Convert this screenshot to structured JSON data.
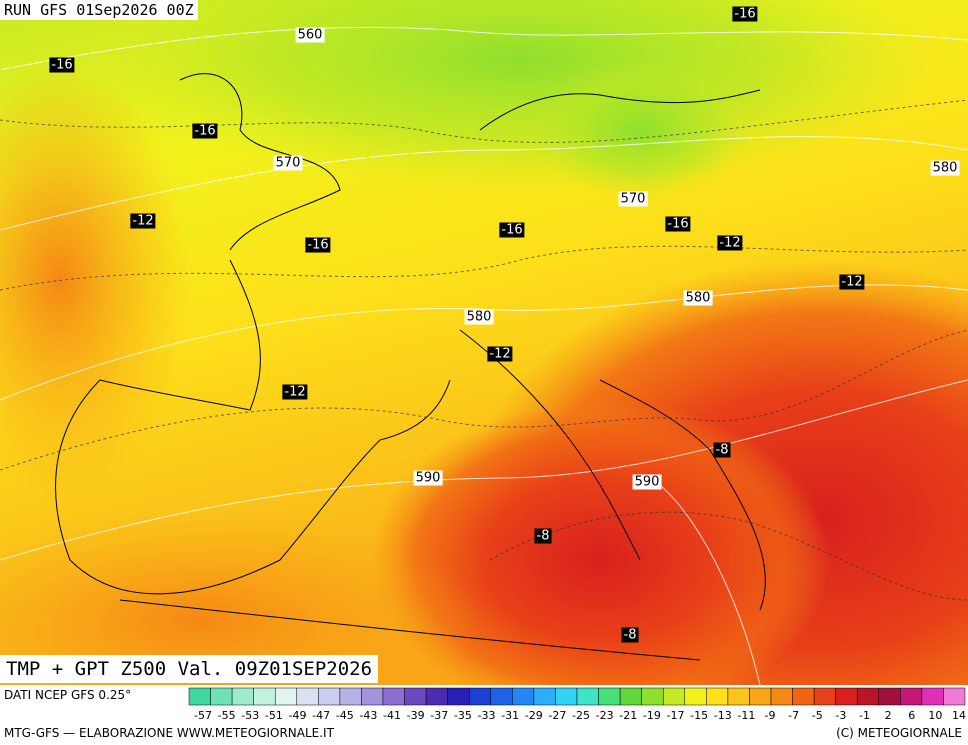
{
  "header": {
    "run": "RUN GFS 01Sep2026 00Z",
    "title": "TMP + GPT Z500 Val. 09Z01SEP2026"
  },
  "map_labels": [
    {
      "text": "560",
      "kind": "gpt"
    },
    {
      "text": "-16",
      "kind": "tmp"
    },
    {
      "text": "-16",
      "kind": "tmp"
    },
    {
      "text": "-16",
      "kind": "tmp"
    },
    {
      "text": "570",
      "kind": "gpt"
    },
    {
      "text": "580",
      "kind": "gpt"
    },
    {
      "text": "-12",
      "kind": "tmp"
    },
    {
      "text": "-16",
      "kind": "tmp"
    },
    {
      "text": "570",
      "kind": "gpt"
    },
    {
      "text": "-16",
      "kind": "tmp"
    },
    {
      "text": "-12",
      "kind": "tmp"
    },
    {
      "text": "-16",
      "kind": "tmp"
    },
    {
      "text": "-12",
      "kind": "tmp"
    },
    {
      "text": "580",
      "kind": "gpt"
    },
    {
      "text": "580",
      "kind": "gpt"
    },
    {
      "text": "-12",
      "kind": "tmp"
    },
    {
      "text": "-12",
      "kind": "tmp"
    },
    {
      "text": "-8",
      "kind": "tmp"
    },
    {
      "text": "590",
      "kind": "gpt"
    },
    {
      "text": "590",
      "kind": "gpt"
    },
    {
      "text": "-8",
      "kind": "tmp"
    },
    {
      "text": "-8",
      "kind": "tmp"
    }
  ],
  "colorbar": {
    "ticks": [
      "-57",
      "-55",
      "-53",
      "-51",
      "-49",
      "-47",
      "-45",
      "-43",
      "-41",
      "-39",
      "-37",
      "-35",
      "-33",
      "-31",
      "-29",
      "-27",
      "-25",
      "-23",
      "-21",
      "-19",
      "-17",
      "-15",
      "-13",
      "-11",
      "-9",
      "-7",
      "-5",
      "-3",
      "-1",
      "2",
      "6",
      "10",
      "14"
    ],
    "colors": [
      "#3fd9a0",
      "#6ee2b4",
      "#9cebcb",
      "#c3f2de",
      "#e0f4f0",
      "#d9e2f2",
      "#c9cdee",
      "#b7b2e6",
      "#a493db",
      "#8c6fd0",
      "#6b49c0",
      "#4b2bb0",
      "#2a20b8",
      "#1d3fd6",
      "#1f62ea",
      "#2288f5",
      "#2ab0fa",
      "#34d3f5",
      "#3ee3c8",
      "#48e07a",
      "#5ed83a",
      "#8fdf2e",
      "#c6ea23",
      "#f2f21c",
      "#fde01a",
      "#fbc419",
      "#f8a617",
      "#f58715",
      "#f06414",
      "#e84018",
      "#d8201e",
      "#b81628",
      "#a0103a",
      "#c21878",
      "#e030b8",
      "#f07ad8"
    ],
    "left_note": "DATI NCEP GFS 0.25°"
  },
  "footer": {
    "left": "MTG-GFS — ELABORAZIONE WWW.METEOGIORNALE.IT",
    "right": "(C) METEOGIORNALE"
  }
}
